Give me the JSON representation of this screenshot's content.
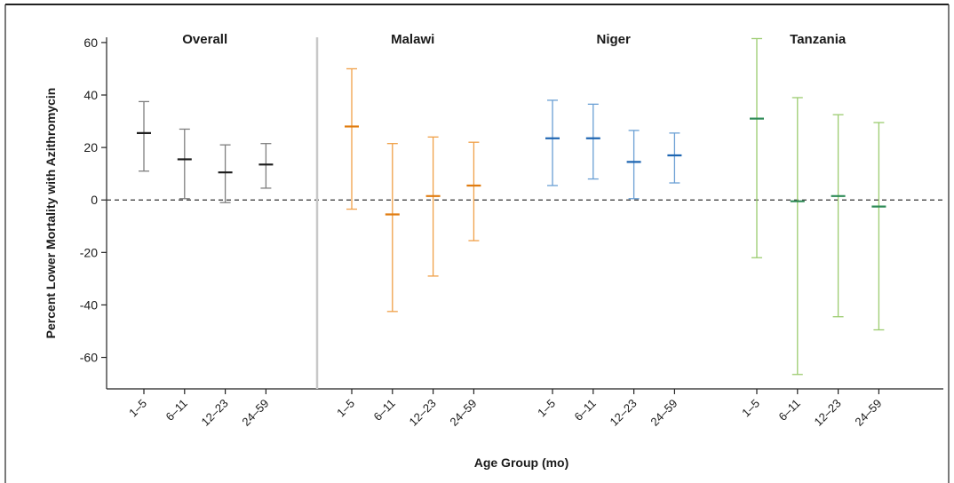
{
  "chart_data": {
    "type": "errorbar",
    "ylabel": "Percent Lower Mortality with Azithromycin",
    "xlabel": "Age Group (mo)",
    "ylim": [
      -72,
      62
    ],
    "yticks": [
      60,
      40,
      20,
      0,
      -20,
      -40,
      -60
    ],
    "reference_line": 0,
    "groups": [
      {
        "name": "Overall",
        "color": "#7f7f7f",
        "center_color": "#1a1a1a",
        "categories": [
          "1–5",
          "6–11",
          "12–23",
          "24–59"
        ],
        "estimates": [
          25.5,
          15.5,
          10.5,
          13.5
        ],
        "lower": [
          11,
          0.5,
          -1,
          4.5
        ],
        "upper": [
          37.5,
          27,
          21,
          21.5
        ]
      },
      {
        "name": "Malawi",
        "color": "#f0a048",
        "center_color": "#e07c10",
        "categories": [
          "1–5",
          "6–11",
          "12–23",
          "24–59"
        ],
        "estimates": [
          28,
          -5.5,
          1.5,
          5.5
        ],
        "lower": [
          -3.5,
          -42.5,
          -29,
          -15.5
        ],
        "upper": [
          50,
          21.5,
          24,
          22
        ]
      },
      {
        "name": "Niger",
        "color": "#6a9fd4",
        "center_color": "#1f66b2",
        "categories": [
          "1–5",
          "6–11",
          "12–23",
          "24–59"
        ],
        "estimates": [
          23.5,
          23.5,
          14.5,
          17
        ],
        "lower": [
          5.5,
          8,
          0.5,
          6.5
        ],
        "upper": [
          38,
          36.5,
          26.5,
          25.5
        ]
      },
      {
        "name": "Tanzania",
        "color": "#9ccc70",
        "center_color": "#2e8b57",
        "categories": [
          "1–5",
          "6–11",
          "12–23",
          "24–59"
        ],
        "estimates": [
          31,
          -0.5,
          1.5,
          -2.5
        ],
        "lower": [
          -22,
          -66.5,
          -44.5,
          -49.5
        ],
        "upper": [
          61.5,
          39,
          32.5,
          29.5
        ]
      }
    ]
  }
}
